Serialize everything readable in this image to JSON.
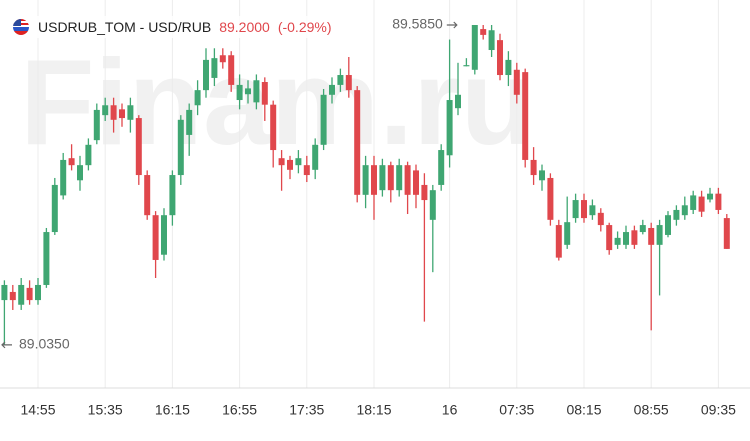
{
  "chart_data": {
    "type": "candlestick",
    "title": "USDRUB_TOM - USD/RUB",
    "last_price": {
      "value": 89.2,
      "label": "89.2000"
    },
    "change": {
      "value": -0.29,
      "label": "(-0.29%)"
    },
    "watermark": "Finam.ru",
    "up_color": "#3fa672",
    "down_color": "#e0474c",
    "ylim": [
      88.966,
      89.628
    ],
    "high_marker": {
      "value": 89.585,
      "label": "89.5850"
    },
    "low_marker": {
      "value": 89.035,
      "label": "89.0350"
    },
    "categories": [
      null,
      null,
      null,
      null,
      "14:55",
      null,
      null,
      null,
      null,
      null,
      null,
      null,
      "15:35",
      null,
      null,
      null,
      null,
      null,
      null,
      null,
      "16:15",
      null,
      null,
      null,
      null,
      null,
      null,
      null,
      "16:55",
      null,
      null,
      null,
      null,
      null,
      null,
      null,
      "17:35",
      null,
      null,
      null,
      null,
      null,
      null,
      null,
      "18:15",
      null,
      null,
      null,
      null,
      null,
      null,
      null,
      null,
      "16",
      null,
      null,
      null,
      null,
      null,
      null,
      null,
      "07:35",
      null,
      null,
      null,
      null,
      null,
      null,
      null,
      "08:15",
      null,
      null,
      null,
      null,
      null,
      null,
      null,
      "08:55",
      null,
      null,
      null,
      null,
      null,
      null,
      null,
      "09:35",
      null
    ],
    "open": [
      89.112,
      89.126,
      89.104,
      89.133,
      89.112,
      89.138,
      89.229,
      89.292,
      89.356,
      89.318,
      89.344,
      89.387,
      89.43,
      89.447,
      89.44,
      89.422,
      89.425,
      89.327,
      89.258,
      89.19,
      89.258,
      89.327,
      89.396,
      89.447,
      89.473,
      89.494,
      89.533,
      89.533,
      89.456,
      89.466,
      89.452,
      89.487,
      89.448,
      89.356,
      89.353,
      89.344,
      89.344,
      89.336,
      89.379,
      89.465,
      89.482,
      89.499,
      89.473,
      89.293,
      89.344,
      89.301,
      89.344,
      89.301,
      89.344,
      89.335,
      89.31,
      89.25,
      89.31,
      89.361,
      89.442,
      89.514,
      89.508,
      89.578,
      89.542,
      89.559,
      89.499,
      89.508,
      89.504,
      89.353,
      89.318,
      89.322,
      89.241,
      89.207,
      89.253,
      89.284,
      89.258,
      89.262,
      89.241,
      89.207,
      89.207,
      89.232,
      89.229,
      89.236,
      89.207,
      89.224,
      89.25,
      89.258,
      89.267,
      89.29,
      89.285,
      89.295,
      89.253
    ],
    "high": [
      89.146,
      89.138,
      89.15,
      89.146,
      89.15,
      89.236,
      89.322,
      89.365,
      89.38,
      89.36,
      89.39,
      89.45,
      89.46,
      89.46,
      89.45,
      89.46,
      89.43,
      89.335,
      89.265,
      89.27,
      89.335,
      89.43,
      89.45,
      89.49,
      89.545,
      89.545,
      89.545,
      89.54,
      89.5,
      89.49,
      89.5,
      89.495,
      89.455,
      89.37,
      89.36,
      89.37,
      89.36,
      89.39,
      89.475,
      89.495,
      89.51,
      89.53,
      89.48,
      89.36,
      89.36,
      89.355,
      89.35,
      89.355,
      89.35,
      89.345,
      89.33,
      89.31,
      89.38,
      89.56,
      89.52,
      89.528,
      89.585,
      89.585,
      89.585,
      89.57,
      89.54,
      89.52,
      89.51,
      89.375,
      89.345,
      89.33,
      89.25,
      89.29,
      89.295,
      89.295,
      89.285,
      89.27,
      89.245,
      89.23,
      89.24,
      89.24,
      89.25,
      89.245,
      89.25,
      89.265,
      89.275,
      89.29,
      89.3,
      89.3,
      89.305,
      89.305,
      89.26
    ],
    "low": [
      89.035,
      89.095,
      89.095,
      89.104,
      89.104,
      89.133,
      89.224,
      89.285,
      89.335,
      89.3,
      89.335,
      89.38,
      89.42,
      89.4,
      89.41,
      89.4,
      89.31,
      89.25,
      89.15,
      89.18,
      89.24,
      89.31,
      89.36,
      89.43,
      89.46,
      89.48,
      89.51,
      89.47,
      89.44,
      89.45,
      89.44,
      89.42,
      89.34,
      89.3,
      89.32,
      89.33,
      89.315,
      89.32,
      89.37,
      89.45,
      89.47,
      89.46,
      89.28,
      89.27,
      89.25,
      89.29,
      89.28,
      89.29,
      89.26,
      89.27,
      89.075,
      89.16,
      89.3,
      89.34,
      89.43,
      89.514,
      89.5,
      89.56,
      89.53,
      89.49,
      89.48,
      89.45,
      89.34,
      89.31,
      89.3,
      89.24,
      89.18,
      89.2,
      89.245,
      89.245,
      89.25,
      89.23,
      89.19,
      89.2,
      89.2,
      89.2,
      89.225,
      89.06,
      89.12,
      89.22,
      89.24,
      89.25,
      89.26,
      89.255,
      89.28,
      89.26,
      89.2
    ],
    "close": [
      89.138,
      89.112,
      89.138,
      89.112,
      89.138,
      89.229,
      89.31,
      89.353,
      89.344,
      89.344,
      89.379,
      89.439,
      89.447,
      89.422,
      89.425,
      89.447,
      89.327,
      89.258,
      89.181,
      89.258,
      89.327,
      89.422,
      89.439,
      89.473,
      89.525,
      89.528,
      89.521,
      89.482,
      89.482,
      89.476,
      89.49,
      89.448,
      89.37,
      89.344,
      89.336,
      89.356,
      89.327,
      89.379,
      89.465,
      89.482,
      89.499,
      89.473,
      89.293,
      89.344,
      89.293,
      89.344,
      89.301,
      89.344,
      89.293,
      89.293,
      89.284,
      89.301,
      89.37,
      89.456,
      89.465,
      89.516,
      89.585,
      89.568,
      89.576,
      89.499,
      89.525,
      89.465,
      89.353,
      89.327,
      89.335,
      89.25,
      89.185,
      89.246,
      89.284,
      89.253,
      89.275,
      89.241,
      89.198,
      89.219,
      89.229,
      89.207,
      89.241,
      89.207,
      89.241,
      89.258,
      89.267,
      89.275,
      89.292,
      89.264,
      89.295,
      89.267,
      89.2
    ]
  }
}
